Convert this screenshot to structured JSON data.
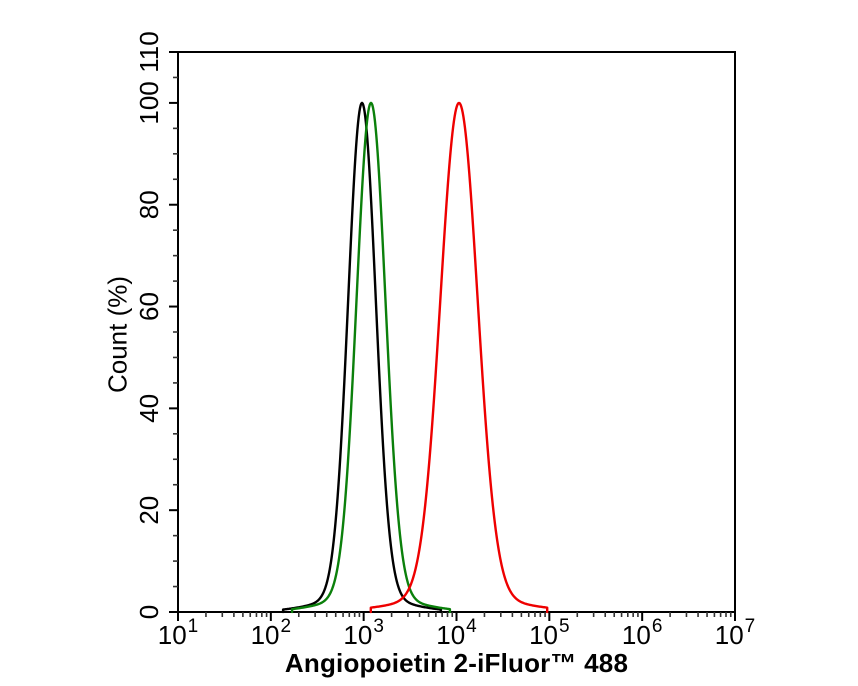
{
  "figure": {
    "background": "#ffffff",
    "kind": "flow-cytometry-overlay-histogram"
  },
  "chart_data": {
    "type": "line",
    "title": "",
    "xlabel": "Angiopoietin 2-iFluor™ 488",
    "ylabel": "Count (%)",
    "x_scale": "log10",
    "xlim_log10": [
      1,
      7
    ],
    "ylim": [
      0,
      110
    ],
    "grid": false,
    "legend": null,
    "x_tick_base": "10",
    "x_tick_exponents": [
      1,
      2,
      3,
      4,
      5,
      6,
      7
    ],
    "x_minor_ticks": "log-decade-2-to-9",
    "y_tick_labels": [
      "0",
      "20",
      "40",
      "60",
      "80",
      "100",
      "110"
    ],
    "y_tick_values": [
      0,
      20,
      40,
      60,
      80,
      100,
      110
    ],
    "y_minor_step": 5,
    "axis_color": "#000000",
    "minor_tick_color": "#333333",
    "series": [
      {
        "name": "black",
        "color": "#000000",
        "peak_log10": 2.982,
        "peak_x_value": 960,
        "height_pct": 100,
        "sigma_log10": 0.148,
        "halfspan_log10": 0.85
      },
      {
        "name": "green",
        "color": "#0b800b",
        "peak_log10": 3.079,
        "peak_x_value": 1200,
        "height_pct": 100,
        "sigma_log10": 0.155,
        "halfspan_log10": 0.85
      },
      {
        "name": "red",
        "color": "#ee0000",
        "peak_log10": 4.027,
        "peak_x_value": 10600,
        "height_pct": 100,
        "sigma_log10": 0.2,
        "halfspan_log10": 0.95
      }
    ],
    "curve_tail": {
      "weight": 0.03,
      "scale": 3.0
    }
  }
}
